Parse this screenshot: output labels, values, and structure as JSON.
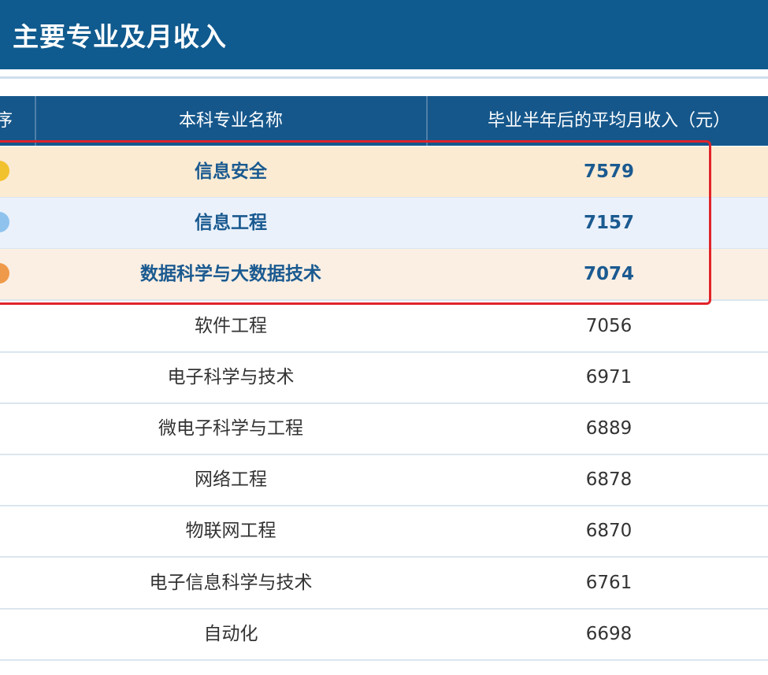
{
  "title": "主要专业及月收入",
  "table": {
    "headers": [
      "序",
      "本科专业名称",
      "毕业半年后的平均月收入（元）"
    ],
    "rows": [
      {
        "name": "信息安全",
        "income": "7579",
        "highlight": true,
        "bg": "#fcebd3",
        "medal": "#f2c12e"
      },
      {
        "name": "信息工程",
        "income": "7157",
        "highlight": true,
        "bg": "#eaf1fb",
        "medal": "#8fc3ee"
      },
      {
        "name": "数据科学与大数据技术",
        "income": "7074",
        "highlight": true,
        "bg": "#fbefe3",
        "medal": "#ef9a4a"
      },
      {
        "name": "软件工程",
        "income": "7056"
      },
      {
        "name": "电子科学与技术",
        "income": "6971"
      },
      {
        "name": "微电子科学与工程",
        "income": "6889"
      },
      {
        "name": "网络工程",
        "income": "6878"
      },
      {
        "name": "物联网工程",
        "income": "6870"
      },
      {
        "name": "电子信息科学与技术",
        "income": "6761"
      },
      {
        "name": "自动化",
        "income": "6698"
      }
    ]
  },
  "colors": {
    "header": "#15578b",
    "highlight_box": "#e0242a"
  }
}
